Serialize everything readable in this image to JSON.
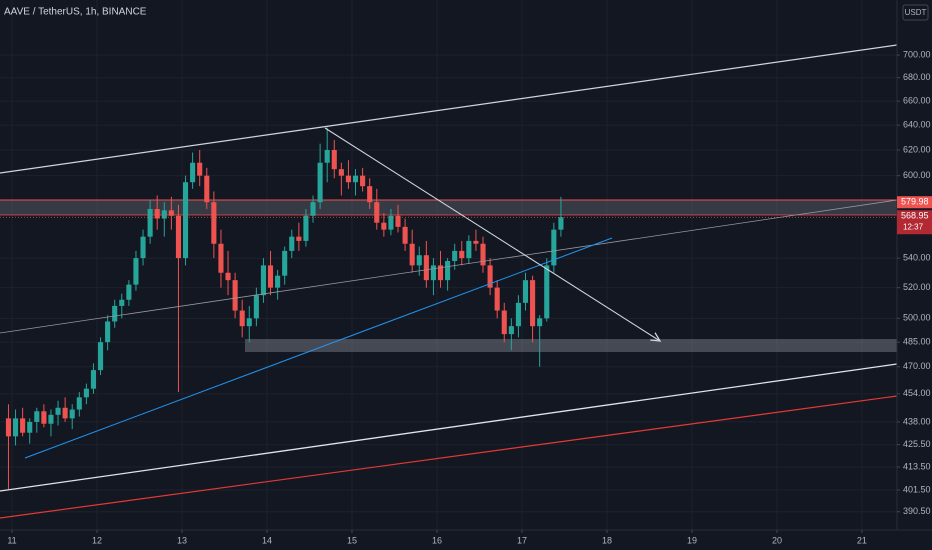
{
  "chart_data": {
    "type": "candlestick",
    "title": "AAVE / TetherUS, 1h, BINANCE",
    "currency": "USDT",
    "countdown": "12:37",
    "marker_price": 579.98,
    "log_scale": true,
    "grid": true,
    "up_color": "#26a69a",
    "down_color": "#ef5350",
    "xlim": [
      -3.39,
      249.9
    ],
    "xticks": [
      {
        "value": 0,
        "label": "11"
      },
      {
        "value": 24,
        "label": "12"
      },
      {
        "value": 48,
        "label": "13"
      },
      {
        "value": 72,
        "label": "14"
      },
      {
        "value": 96,
        "label": "15"
      },
      {
        "value": 120,
        "label": "16"
      },
      {
        "value": 144,
        "label": "17"
      },
      {
        "value": 168,
        "label": "18"
      },
      {
        "value": 192,
        "label": "19"
      },
      {
        "value": 216,
        "label": "20"
      },
      {
        "value": 240,
        "label": "21"
      }
    ],
    "ylim": [
      381.5,
      751
    ],
    "yticks": [
      {
        "value": 700,
        "label": "700.00"
      },
      {
        "value": 680,
        "label": "680.00"
      },
      {
        "value": 660,
        "label": "660.00"
      },
      {
        "value": 640,
        "label": "640.00"
      },
      {
        "value": 620,
        "label": "620.00"
      },
      {
        "value": 600,
        "label": "600.00"
      },
      {
        "value": 540,
        "label": "540.00"
      },
      {
        "value": 520,
        "label": "520.00"
      },
      {
        "value": 500,
        "label": "500.00"
      },
      {
        "value": 485,
        "label": "485.00"
      },
      {
        "value": 470,
        "label": "470.00"
      },
      {
        "value": 454,
        "label": "454.00"
      },
      {
        "value": 438,
        "label": "438.00"
      },
      {
        "value": 425.5,
        "label": "425.50"
      },
      {
        "value": 413.5,
        "label": "413.50"
      },
      {
        "value": 401.5,
        "label": "401.50"
      },
      {
        "value": 390.5,
        "label": "390.50"
      }
    ],
    "x": [
      -2,
      0,
      2,
      4,
      6,
      8,
      10,
      12,
      14,
      16,
      18,
      20,
      22,
      24,
      26,
      28,
      30,
      32,
      34,
      36,
      38,
      40,
      42,
      44,
      46,
      48,
      50,
      52,
      54,
      56,
      58,
      60,
      62,
      64,
      66,
      68,
      70,
      72,
      74,
      76,
      78,
      80,
      82,
      84,
      86,
      88,
      90,
      92,
      94,
      96,
      98,
      100,
      102,
      104,
      106,
      108,
      110,
      112,
      114,
      116,
      118,
      120,
      122,
      124,
      126,
      128,
      130,
      132,
      134,
      136,
      138,
      140,
      142,
      144,
      146,
      148,
      150,
      152,
      154
    ],
    "open": [
      440,
      430,
      440,
      432,
      438,
      444,
      437,
      442,
      446,
      440,
      445,
      452,
      457,
      468,
      485,
      498,
      508,
      512,
      522,
      540,
      555,
      575,
      568,
      574,
      570,
      540,
      595,
      610,
      600,
      580,
      550,
      530,
      525,
      505,
      495,
      500,
      515,
      535,
      520,
      528,
      545,
      555,
      552,
      570,
      580,
      610,
      620,
      605,
      600,
      595,
      600,
      592,
      580,
      565,
      560,
      570,
      562,
      550,
      535,
      542,
      525,
      535,
      525,
      538,
      545,
      540,
      552,
      550,
      535,
      520,
      505,
      490,
      495,
      510,
      525,
      495,
      500,
      535,
      560
    ],
    "high": [
      448,
      445,
      446,
      440,
      446,
      448,
      445,
      450,
      452,
      448,
      455,
      460,
      472,
      488,
      502,
      512,
      516,
      525,
      545,
      560,
      582,
      585,
      580,
      584,
      578,
      600,
      618,
      620,
      606,
      588,
      560,
      545,
      530,
      512,
      508,
      520,
      540,
      545,
      532,
      548,
      560,
      565,
      575,
      585,
      625,
      638,
      628,
      610,
      612,
      605,
      606,
      598,
      590,
      572,
      575,
      578,
      568,
      560,
      548,
      552,
      540,
      545,
      540,
      550,
      552,
      556,
      560,
      555,
      540,
      525,
      510,
      500,
      515,
      530,
      528,
      502,
      540,
      565,
      584
    ],
    "low": [
      402,
      425,
      430,
      426,
      432,
      435,
      430,
      436,
      438,
      434,
      441,
      448,
      454,
      465,
      480,
      494,
      500,
      508,
      518,
      535,
      550,
      560,
      555,
      560,
      455,
      535,
      590,
      592,
      575,
      540,
      520,
      515,
      500,
      488,
      485,
      495,
      510,
      515,
      512,
      522,
      540,
      545,
      548,
      565,
      575,
      595,
      598,
      585,
      590,
      585,
      588,
      575,
      560,
      555,
      556,
      558,
      545,
      530,
      528,
      520,
      515,
      520,
      518,
      532,
      535,
      536,
      545,
      530,
      515,
      500,
      485,
      480,
      488,
      505,
      485,
      470,
      498,
      530,
      555
    ],
    "close": [
      430,
      440,
      432,
      438,
      444,
      437,
      442,
      446,
      440,
      445,
      452,
      457,
      468,
      485,
      498,
      508,
      512,
      522,
      540,
      555,
      575,
      568,
      574,
      570,
      540,
      595,
      610,
      600,
      580,
      550,
      530,
      525,
      505,
      495,
      500,
      515,
      535,
      520,
      528,
      545,
      555,
      552,
      570,
      580,
      610,
      620,
      605,
      600,
      595,
      600,
      592,
      580,
      565,
      560,
      570,
      562,
      550,
      535,
      542,
      525,
      535,
      525,
      538,
      545,
      540,
      552,
      550,
      535,
      520,
      505,
      490,
      495,
      510,
      525,
      495,
      500,
      535,
      560,
      568.95
    ]
  }
}
